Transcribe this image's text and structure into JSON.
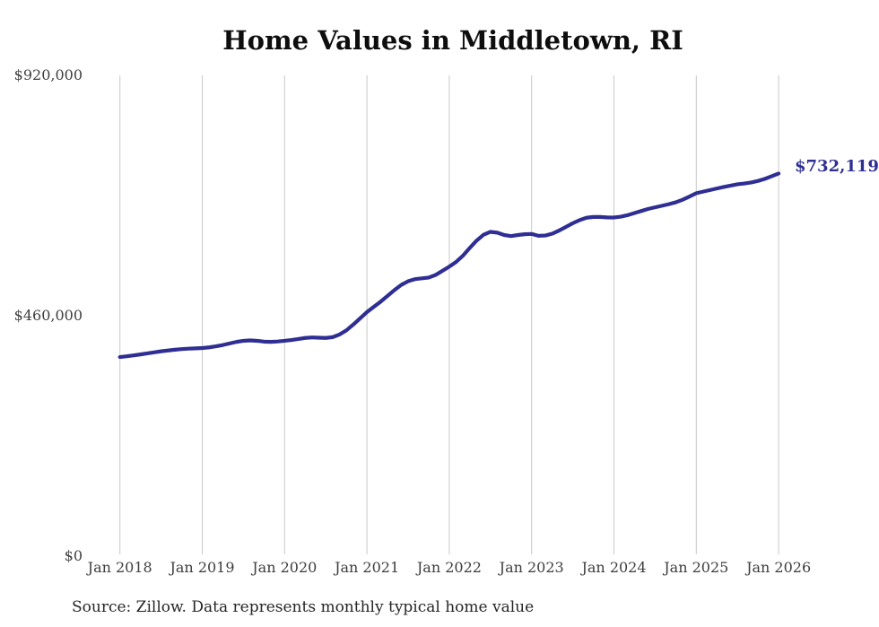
{
  "chart_data": {
    "type": "line",
    "title": "Home Values in Middletown, RI",
    "annotation": "$732,119",
    "latest_value": 732119,
    "source": "Source: Zillow. Data represents monthly typical home value",
    "series_name": "Monthly typical home value",
    "x_tick_labels": [
      "Jan 2018",
      "Jan 2019",
      "Jan 2020",
      "Jan 2021",
      "Jan 2022",
      "Jan 2023",
      "Jan 2024",
      "Jan 2025",
      "Jan 2026"
    ],
    "y_ticks": [
      {
        "label": "$0",
        "value": 0
      },
      {
        "label": "$460,000",
        "value": 460000
      },
      {
        "label": "$920,000",
        "value": 920000
      }
    ],
    "ylim": [
      0,
      920000
    ],
    "grid": "vertical-only",
    "legend": "none",
    "line_color": "#2e2e93",
    "grid_color": "#c9c9c9",
    "tick_text_color": "#3e3e3e",
    "monthly_values": [
      381000,
      382500,
      384200,
      386000,
      388000,
      390000,
      392000,
      393500,
      395000,
      396200,
      397000,
      397600,
      398200,
      399500,
      401500,
      404000,
      407000,
      410000,
      412000,
      412800,
      412000,
      410500,
      410000,
      410800,
      412000,
      413500,
      415500,
      417500,
      418500,
      418000,
      417500,
      419000,
      424000,
      432000,
      443000,
      455000,
      467000,
      477000,
      487000,
      498000,
      509000,
      519000,
      526000,
      530000,
      531500,
      533000,
      538000,
      546000,
      554000,
      563000,
      575000,
      590000,
      604000,
      615000,
      620500,
      619000,
      614500,
      612500,
      614500,
      616000,
      616500,
      613000,
      613500,
      617000,
      623000,
      630000,
      637000,
      643000,
      647500,
      649000,
      649000,
      648200,
      648000,
      649500,
      652500,
      656500,
      660500,
      664500,
      667500,
      670500,
      673500,
      677000,
      682000,
      688000,
      694500,
      697500,
      700500,
      703500,
      706500,
      709000,
      711500,
      713000,
      715000,
      718000,
      722000,
      727000,
      732119
    ]
  }
}
